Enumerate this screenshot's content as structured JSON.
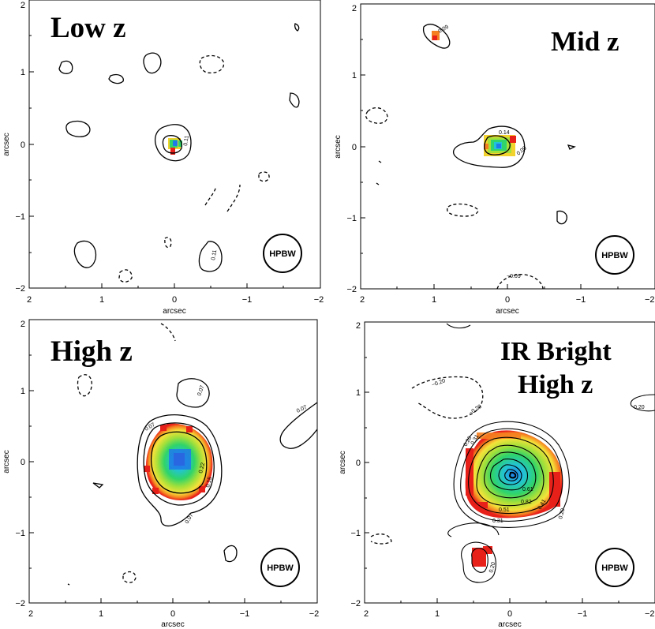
{
  "chart_data": [
    {
      "type": "heatmap",
      "title": "Low z",
      "title_lines": [
        "Low z"
      ],
      "xlabel": "arcsec",
      "ylabel": "arcsec",
      "xlim": [
        2,
        -2
      ],
      "ylim": [
        -2,
        2
      ],
      "xticks": [
        "2",
        "1",
        "0",
        "−1",
        "−2"
      ],
      "yticks": [
        "−2",
        "−1",
        "0",
        "1",
        "2"
      ],
      "beam_label": "HPBW",
      "contour_labels": [
        "0.11",
        "0.11"
      ],
      "peak": {
        "x": 0.0,
        "y": 0.0
      }
    },
    {
      "type": "heatmap",
      "title": "Mid z",
      "title_lines": [
        "Mid z"
      ],
      "xlabel": "arcsec",
      "ylabel": "arcsec",
      "xlim": [
        2,
        -2
      ],
      "ylim": [
        -2,
        2
      ],
      "xticks": [
        "2",
        "1",
        "0",
        "−1",
        "−2"
      ],
      "yticks": [
        "−2",
        "−1",
        "0",
        "1",
        "2"
      ],
      "beam_label": "HPBW",
      "contour_labels": [
        "0.09",
        "0.14",
        "0.09",
        "−0.09"
      ],
      "peak": {
        "x": 0.1,
        "y": 0.0
      }
    },
    {
      "type": "heatmap",
      "title": "High z",
      "title_lines": [
        "High z"
      ],
      "xlabel": "arcsec",
      "ylabel": "arcsec",
      "xlim": [
        2,
        -2
      ],
      "ylim": [
        -2,
        2
      ],
      "xticks": [
        "2",
        "1",
        "0",
        "−1",
        "−2"
      ],
      "yticks": [
        "−2",
        "−1",
        "0",
        "1",
        "2"
      ],
      "beam_label": "HPBW",
      "contour_labels": [
        "0.07",
        "0.07",
        "0.07",
        "0.22",
        "0.15",
        "0.07"
      ],
      "peak": {
        "x": 0.0,
        "y": 0.0
      }
    },
    {
      "type": "heatmap",
      "title": "IR Bright High z",
      "title_lines": [
        "IR Bright",
        "High z"
      ],
      "xlabel": "arcsec",
      "ylabel": "arcsec",
      "xlim": [
        2,
        -2
      ],
      "ylim": [
        -2,
        2
      ],
      "xticks": [
        "2",
        "1",
        "0",
        "−1",
        "−2"
      ],
      "yticks": [
        "−2",
        "−1",
        "0",
        "1",
        "2"
      ],
      "beam_label": "HPBW",
      "contour_labels": [
        "−0.20",
        "−0.20",
        "0.20",
        "0.20",
        "0.31",
        "0.51",
        "0.61",
        "0.41",
        "0.82",
        "0.31",
        "0.20",
        "0.20"
      ],
      "peak": {
        "x": 0.0,
        "y": -0.15
      }
    }
  ]
}
